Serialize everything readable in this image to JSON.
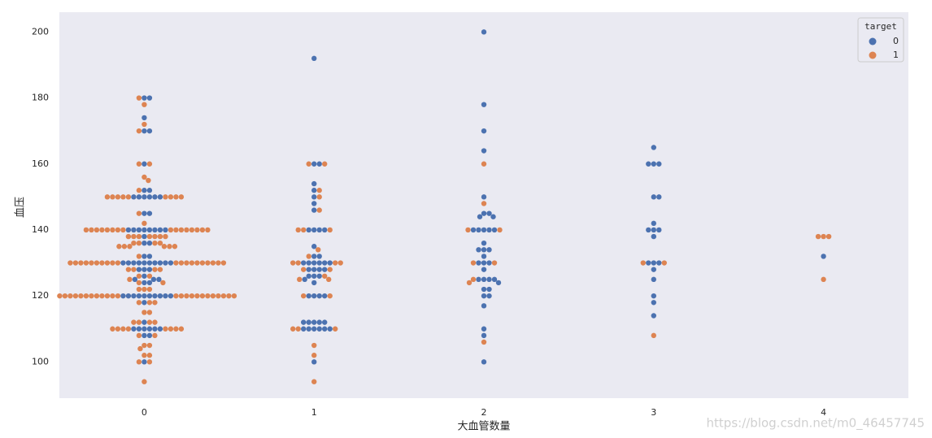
{
  "chart_data": {
    "type": "swarm",
    "xlabel": "大血管数量",
    "ylabel": "血压",
    "categories": [
      "0",
      "1",
      "2",
      "3",
      "4"
    ],
    "ylim": [
      89,
      206
    ],
    "yticks": [
      100,
      120,
      140,
      160,
      180,
      200
    ],
    "grid": false,
    "legend_title": "target",
    "legend_position": "upper right",
    "series": [
      {
        "name": "0",
        "color": "#4c72b0",
        "values": [
          [
            180,
            180,
            174,
            170,
            170,
            160,
            152,
            152,
            150,
            150,
            150,
            150,
            150,
            150,
            145,
            145,
            140,
            140,
            140,
            140,
            140,
            140,
            140,
            140,
            138,
            136,
            136,
            132,
            132,
            130,
            130,
            130,
            130,
            130,
            130,
            130,
            130,
            130,
            130,
            128,
            128,
            128,
            126,
            125,
            125,
            125,
            124,
            124,
            120,
            120,
            120,
            120,
            120,
            120,
            120,
            120,
            120,
            120,
            118,
            112,
            110,
            110,
            110,
            110,
            110,
            110,
            108,
            108,
            100
          ],
          [
            192,
            160,
            160,
            154,
            152,
            150,
            148,
            146,
            140,
            140,
            140,
            140,
            135,
            132,
            132,
            130,
            130,
            130,
            130,
            130,
            130,
            128,
            128,
            128,
            128,
            126,
            126,
            126,
            125,
            124,
            120,
            120,
            120,
            120,
            112,
            112,
            112,
            112,
            112,
            110,
            110,
            110,
            110,
            110,
            110,
            100
          ],
          [
            200,
            178,
            170,
            164,
            150,
            145,
            145,
            144,
            144,
            140,
            140,
            140,
            140,
            140,
            136,
            134,
            134,
            134,
            132,
            130,
            130,
            130,
            128,
            125,
            125,
            125,
            125,
            124,
            122,
            122,
            120,
            120,
            117,
            110,
            108,
            100
          ],
          [
            165,
            160,
            160,
            160,
            150,
            150,
            142,
            140,
            140,
            140,
            138,
            130,
            130,
            130,
            128,
            125,
            120,
            118,
            114
          ],
          [
            132
          ]
        ]
      },
      {
        "name": "1",
        "color": "#dd8452",
        "values": [
          [
            180,
            178,
            172,
            170,
            160,
            160,
            156,
            155,
            152,
            150,
            150,
            150,
            150,
            150,
            150,
            150,
            150,
            150,
            145,
            142,
            140,
            140,
            140,
            140,
            140,
            140,
            140,
            140,
            140,
            140,
            140,
            140,
            140,
            140,
            140,
            140,
            138,
            138,
            138,
            138,
            138,
            138,
            138,
            136,
            136,
            136,
            136,
            135,
            135,
            135,
            135,
            135,
            135,
            132,
            130,
            130,
            130,
            130,
            130,
            130,
            130,
            130,
            130,
            130,
            130,
            130,
            130,
            130,
            130,
            130,
            130,
            130,
            130,
            130,
            128,
            128,
            128,
            128,
            126,
            126,
            125,
            124,
            124,
            122,
            122,
            122,
            120,
            120,
            120,
            120,
            120,
            120,
            120,
            120,
            120,
            120,
            120,
            120,
            120,
            120,
            120,
            120,
            120,
            120,
            120,
            120,
            120,
            120,
            120,
            120,
            118,
            118,
            118,
            115,
            115,
            112,
            112,
            112,
            112,
            110,
            110,
            110,
            110,
            110,
            110,
            110,
            110,
            108,
            108,
            105,
            105,
            104,
            102,
            102,
            100,
            100,
            94
          ],
          [
            160,
            160,
            152,
            150,
            146,
            140,
            140,
            140,
            134,
            132,
            130,
            130,
            130,
            130,
            128,
            128,
            126,
            125,
            125,
            120,
            120,
            110,
            110,
            110,
            105,
            102,
            94
          ],
          [
            160,
            148,
            140,
            140,
            130,
            130,
            125,
            124,
            106
          ],
          [
            130,
            130,
            108
          ],
          [
            138,
            138,
            138,
            125
          ]
        ]
      }
    ],
    "watermark": "https://blog.csdn.net/m0_46457745"
  }
}
